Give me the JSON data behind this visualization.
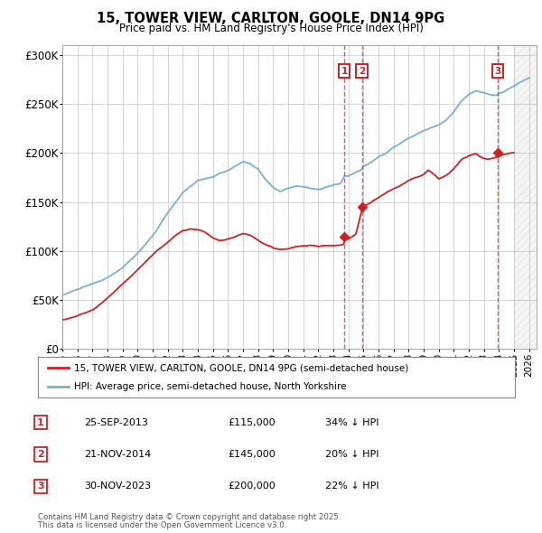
{
  "title": "15, TOWER VIEW, CARLTON, GOOLE, DN14 9PG",
  "subtitle": "Price paid vs. HM Land Registry's House Price Index (HPI)",
  "legend_line1": "15, TOWER VIEW, CARLTON, GOOLE, DN14 9PG (semi-detached house)",
  "legend_line2": "HPI: Average price, semi-detached house, North Yorkshire",
  "footer1": "Contains HM Land Registry data © Crown copyright and database right 2025.",
  "footer2": "This data is licensed under the Open Government Licence v3.0.",
  "sales": [
    {
      "num": 1,
      "date": "25-SEP-2013",
      "price": "£115,000",
      "pct": "34% ↓ HPI",
      "year": 2013.73
    },
    {
      "num": 2,
      "date": "21-NOV-2014",
      "price": "£145,000",
      "pct": "20% ↓ HPI",
      "year": 2014.89
    },
    {
      "num": 3,
      "date": "30-NOV-2023",
      "price": "£200,000",
      "pct": "22% ↓ HPI",
      "year": 2023.91
    }
  ],
  "sale_values_red": [
    115000,
    145000,
    200000
  ],
  "hpi_color": "#7ab0d4",
  "price_color": "#cc2222",
  "vline_color": "#dd4444",
  "box_color": "#cc2222",
  "grid_color": "#cccccc",
  "bg_color": "#ffffff",
  "band_color": "#ddeeff",
  "ylim": [
    0,
    310000
  ],
  "xlim": [
    1995,
    2026.5
  ],
  "yticks": [
    0,
    50000,
    100000,
    150000,
    200000,
    250000,
    300000
  ],
  "ytick_labels": [
    "£0",
    "£50K",
    "£100K",
    "£150K",
    "£200K",
    "£250K",
    "£300K"
  ],
  "xticks": [
    1995,
    1996,
    1997,
    1998,
    1999,
    2000,
    2001,
    2002,
    2003,
    2004,
    2005,
    2006,
    2007,
    2008,
    2009,
    2010,
    2011,
    2012,
    2013,
    2014,
    2015,
    2016,
    2017,
    2018,
    2019,
    2020,
    2021,
    2022,
    2023,
    2024,
    2025,
    2026
  ]
}
